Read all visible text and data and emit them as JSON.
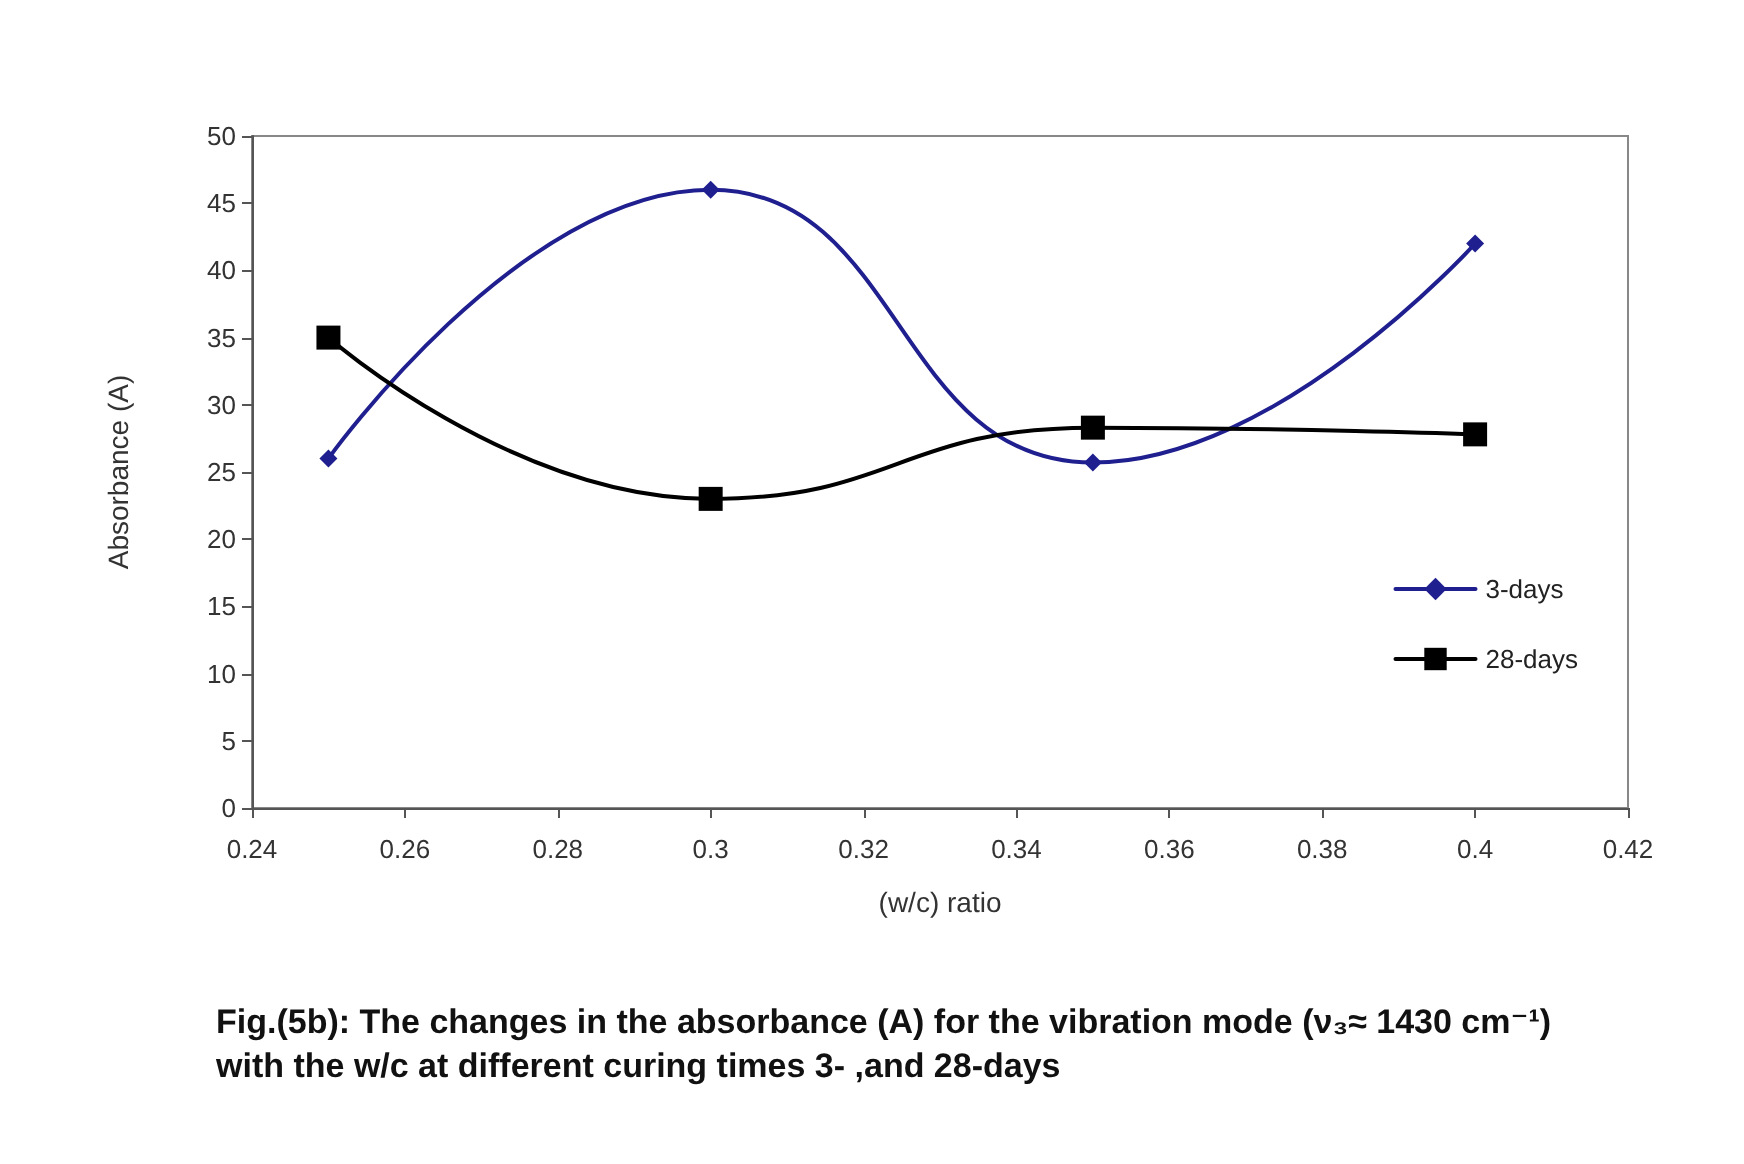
{
  "chart_data": {
    "type": "line",
    "xlabel": "(w/c) ratio",
    "ylabel": "Absorbance (A)",
    "x": [
      0.25,
      0.3,
      0.35,
      0.4
    ],
    "series": [
      {
        "name": "3-days",
        "color": "#1f1f8f",
        "marker": "diamond",
        "values": [
          26,
          46,
          25.7,
          42
        ]
      },
      {
        "name": "28-days",
        "color": "#000000",
        "marker": "square",
        "values": [
          35,
          23,
          28.3,
          27.8
        ]
      }
    ],
    "xlim": [
      0.24,
      0.42
    ],
    "xticks": [
      0.24,
      0.26,
      0.28,
      0.3,
      0.32,
      0.34,
      0.36,
      0.38,
      0.4,
      0.42
    ],
    "ylim": [
      0,
      50
    ],
    "yticks": [
      0,
      5,
      10,
      15,
      20,
      25,
      30,
      35,
      40,
      45,
      50
    ],
    "grid": false,
    "legend": "right",
    "line_style": "solid",
    "annotations": [
      "Fig.(5b): The changes in the absorbance (A) for the vibration mode (ν₃≈ 1430 cm⁻¹) with the w/c at different curing times 3- ,and 28-days"
    ]
  }
}
